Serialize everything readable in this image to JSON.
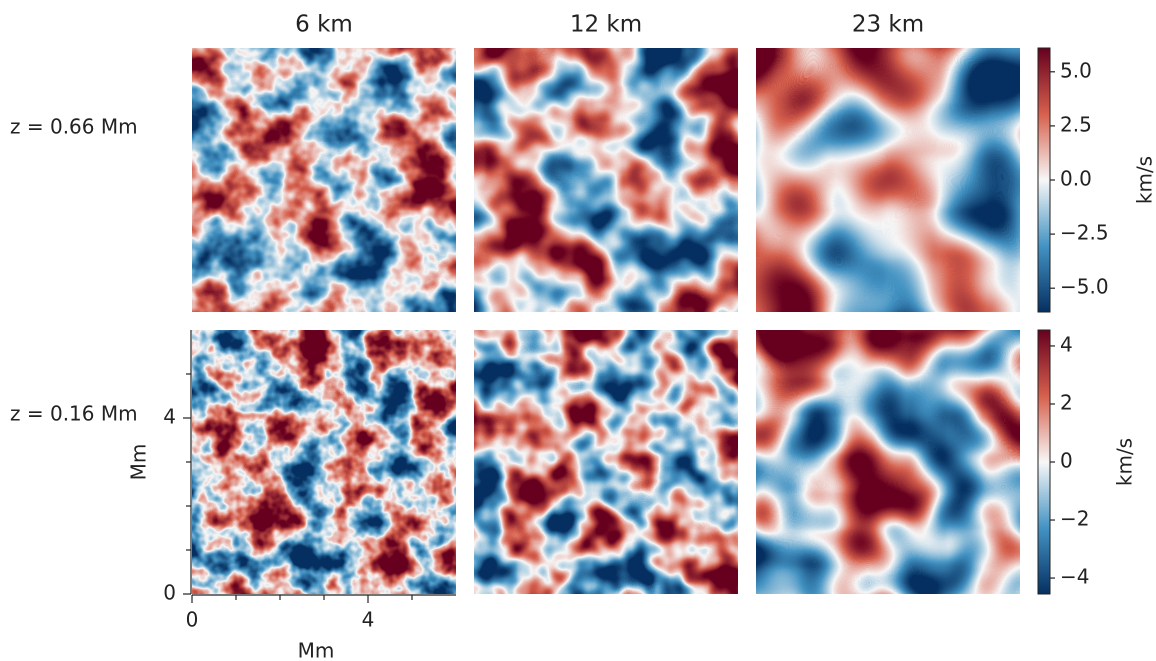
{
  "chart_data": {
    "type": "heatmap-grid",
    "columns": [
      "6 km",
      "12 km",
      "23 km"
    ],
    "rows": [
      {
        "label": "z = 0.66 Mm",
        "colorbar": {
          "label": "km/s",
          "lim": [
            -6.1,
            6.1
          ],
          "ticks": [
            {
              "value": 5,
              "label": "5.0"
            },
            {
              "value": 2.5,
              "label": "2.5"
            },
            {
              "value": 0,
              "label": "0.0"
            },
            {
              "value": -2.5,
              "label": "−2.5"
            },
            {
              "value": -5,
              "label": "−5.0"
            }
          ]
        }
      },
      {
        "label": "z = 0.16 Mm",
        "colorbar": {
          "label": "km/s",
          "lim": [
            -4.55,
            4.55
          ],
          "ticks": [
            4,
            2,
            0,
            {
              "value": -2,
              "label": "−2"
            },
            {
              "value": -4,
              "label": "−4"
            }
          ]
        }
      }
    ],
    "xlabel": "Mm",
    "ylabel": "Mm",
    "xlim": [
      0,
      6
    ],
    "xticks": [
      0,
      4
    ],
    "xminorticks": [
      1,
      2,
      3,
      5
    ],
    "ylim": [
      0,
      6
    ],
    "yticks": [
      0,
      4
    ],
    "yminorticks": [
      1,
      2,
      3,
      5
    ],
    "colormap": [
      "#053061",
      "#4393c3",
      "#f7f7f7",
      "#d6604d",
      "#67001f"
    ]
  }
}
